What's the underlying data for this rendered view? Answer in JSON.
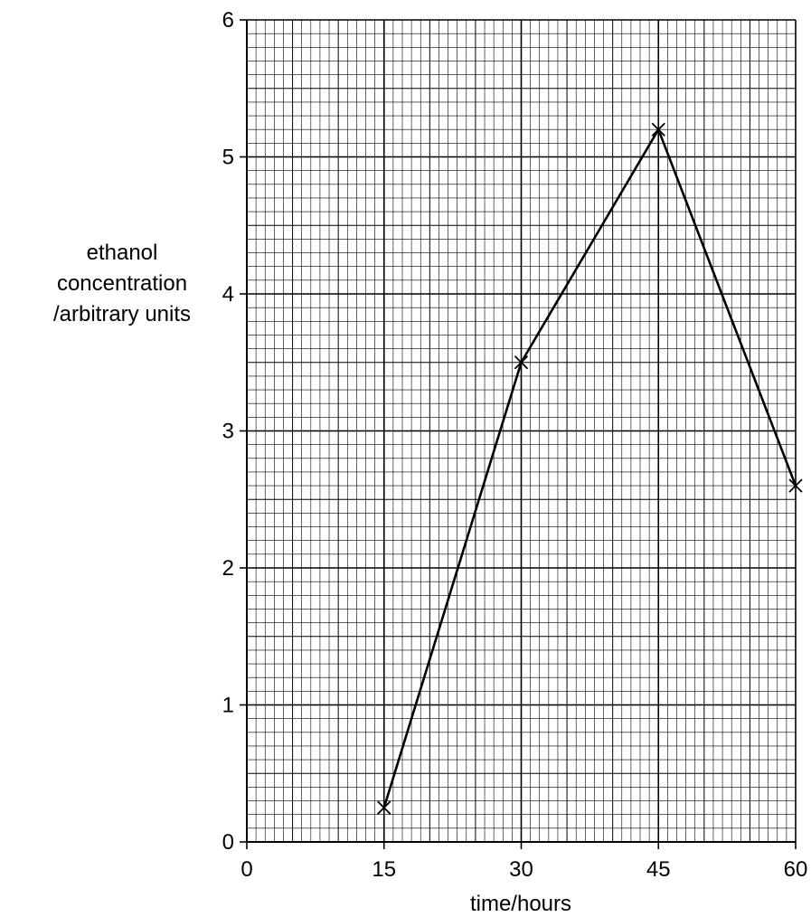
{
  "chart_data": {
    "type": "line",
    "title": "",
    "xlabel": "time/hours",
    "ylabel_lines": [
      "ethanol",
      "concentration",
      "/arbitrary units"
    ],
    "xlim": [
      0,
      60
    ],
    "ylim": [
      0,
      6
    ],
    "x_ticks": [
      0,
      15,
      30,
      45,
      60
    ],
    "y_ticks": [
      0,
      1,
      2,
      3,
      4,
      5,
      6
    ],
    "grid": true,
    "marker": "cross",
    "line_color": "#000000",
    "series": [
      {
        "x": [
          15,
          30,
          45,
          60
        ],
        "y": [
          0.25,
          3.5,
          5.2,
          2.6
        ]
      }
    ]
  }
}
